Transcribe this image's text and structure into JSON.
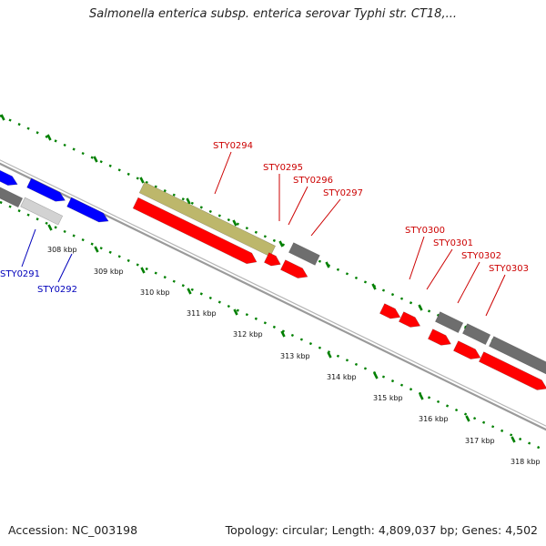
{
  "header": {
    "title": "Salmonella enterica subsp. enterica serovar Typhi str. CT18,..."
  },
  "footer": {
    "accession": "Accession: NC_003198",
    "topology": "Topology: circular; Length: 4,809,037 bp; Genes: 4,502"
  },
  "colors": {
    "forward_gene": "#0000ff",
    "reverse_gene": "#ff0000",
    "other_gene": "#6e6e6e",
    "light_gene": "#d2d2d2",
    "highlight_gene": "#bdb76b",
    "tick": "#008000",
    "backbone": "#8c8c8c",
    "forward_label": "#0000bb",
    "reverse_label": "#cc0000"
  },
  "scale": {
    "unit": "kbp",
    "ticks": [
      {
        "kbp": 308,
        "label": "308 kbp"
      },
      {
        "kbp": 309,
        "label": "309 kbp"
      },
      {
        "kbp": 310,
        "label": "310 kbp"
      },
      {
        "kbp": 311,
        "label": "311 kbp"
      },
      {
        "kbp": 312,
        "label": "312 kbp"
      },
      {
        "kbp": 313,
        "label": "313 kbp"
      },
      {
        "kbp": 314,
        "label": "314 kbp"
      },
      {
        "kbp": 315,
        "label": "315 kbp"
      },
      {
        "kbp": 316,
        "label": "316 kbp"
      },
      {
        "kbp": 317,
        "label": "317 kbp"
      },
      {
        "kbp": 318,
        "label": "318 kbp"
      }
    ]
  },
  "genes": [
    {
      "kind": "forward",
      "label": "STY0291"
    },
    {
      "kind": "forward",
      "label": "STY0292"
    },
    {
      "kind": "highlight",
      "label": "STY0294"
    },
    {
      "kind": "reverse",
      "label": "STY0295"
    },
    {
      "kind": "reverse",
      "label": "STY0296"
    },
    {
      "kind": "other",
      "label": "STY0297"
    },
    {
      "kind": "reverse",
      "label": "STY0300"
    },
    {
      "kind": "reverse",
      "label": "STY0301"
    },
    {
      "kind": "reverse",
      "label": "STY0302"
    },
    {
      "kind": "reverse",
      "label": "STY0303"
    }
  ]
}
